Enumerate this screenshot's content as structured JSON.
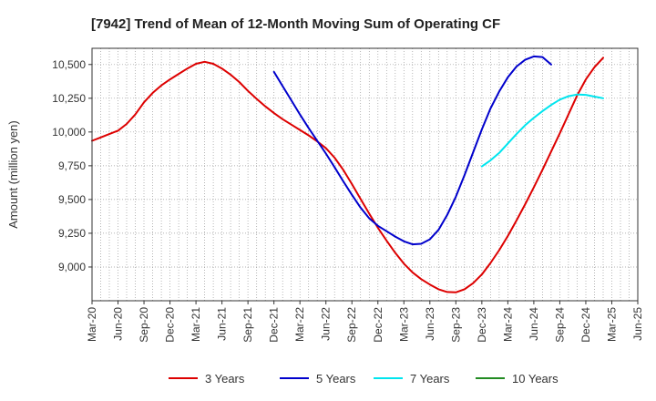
{
  "chart_data": {
    "type": "line",
    "title": "[7942]  Trend of Mean of 12-Month Moving Sum of Operating CF",
    "ylabel": "Amount (million yen)",
    "xlabel": "",
    "x_tick_labels": [
      "Mar-20",
      "Jun-20",
      "Sep-20",
      "Dec-20",
      "Mar-21",
      "Jun-21",
      "Sep-21",
      "Dec-21",
      "Mar-22",
      "Jun-22",
      "Sep-22",
      "Dec-22",
      "Mar-23",
      "Jun-23",
      "Sep-23",
      "Dec-23",
      "Mar-24",
      "Jun-24",
      "Sep-24",
      "Dec-24",
      "Mar-25",
      "Jun-25"
    ],
    "x_start": "2020-03",
    "ylim": [
      8750,
      10620
    ],
    "y_ticks": [
      9000,
      9250,
      9500,
      9750,
      10000,
      10250,
      10500
    ],
    "y_tick_labels": [
      "9,000",
      "9,250",
      "9,500",
      "9,750",
      "10,000",
      "10,250",
      "10,500"
    ],
    "grid": true,
    "legend_position": "bottom",
    "series": [
      {
        "name": "3 Years",
        "color": "#dd0000",
        "start_index": 0,
        "values": [
          9935,
          9960,
          9985,
          10010,
          10060,
          10130,
          10220,
          10290,
          10345,
          10390,
          10430,
          10470,
          10505,
          10520,
          10505,
          10470,
          10425,
          10370,
          10305,
          10245,
          10190,
          10140,
          10095,
          10055,
          10015,
          9975,
          9930,
          9880,
          9810,
          9720,
          9615,
          9505,
          9395,
          9290,
          9195,
          9105,
          9025,
          8960,
          8910,
          8870,
          8835,
          8815,
          8812,
          8835,
          8880,
          8945,
          9030,
          9125,
          9230,
          9345,
          9465,
          9590,
          9720,
          9855,
          9990,
          10130,
          10270,
          10390,
          10480,
          10550
        ]
      },
      {
        "name": "5 Years",
        "color": "#0000cc",
        "start_index": 21,
        "values": [
          10445,
          10340,
          10235,
          10130,
          10030,
          9935,
          9840,
          9740,
          9635,
          9535,
          9440,
          9360,
          9305,
          9265,
          9225,
          9190,
          9168,
          9172,
          9205,
          9275,
          9385,
          9520,
          9680,
          9850,
          10020,
          10175,
          10300,
          10405,
          10485,
          10535,
          10560,
          10555,
          10500
        ]
      },
      {
        "name": "7 Years",
        "color": "#00e5ee",
        "start_index": 45,
        "values": [
          9745,
          9790,
          9845,
          9915,
          9985,
          10050,
          10105,
          10155,
          10200,
          10240,
          10265,
          10278,
          10275,
          10262,
          10250
        ]
      },
      {
        "name": "10 Years",
        "color": "#228b22",
        "start_index": 0,
        "values": []
      }
    ]
  }
}
